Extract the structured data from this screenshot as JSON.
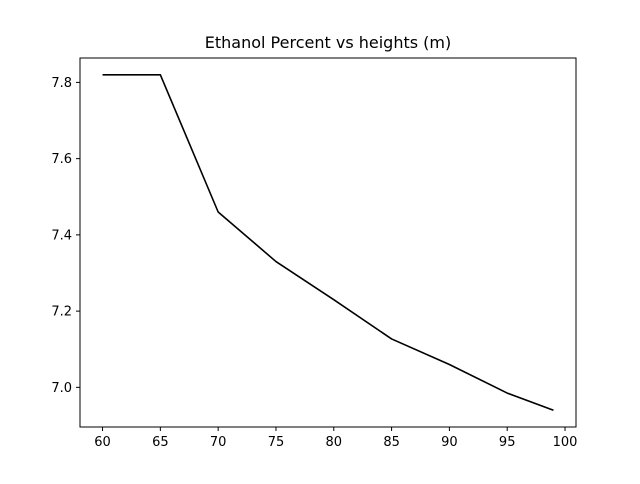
{
  "chart_data": {
    "type": "line",
    "title": "Ethanol Percent vs heights (m)",
    "xlabel": "",
    "ylabel": "",
    "xlim": [
      58.05,
      100.95
    ],
    "ylim": [
      6.896,
      7.864
    ],
    "grid": false,
    "legend": "none",
    "line_color": "#000000",
    "x_ticks": [
      60,
      65,
      70,
      75,
      80,
      85,
      90,
      95,
      100
    ],
    "x_tick_labels": [
      "60",
      "65",
      "70",
      "75",
      "80",
      "85",
      "90",
      "95",
      "100"
    ],
    "y_ticks": [
      7.0,
      7.2,
      7.4,
      7.6,
      7.8
    ],
    "y_tick_labels": [
      "7.0",
      "7.2",
      "7.4",
      "7.6",
      "7.8"
    ],
    "series": [
      {
        "x": [
          60,
          65,
          70,
          75,
          80,
          85,
          90,
          95,
          99
        ],
        "y": [
          7.82,
          7.82,
          7.46,
          7.33,
          7.23,
          7.127,
          7.06,
          6.985,
          6.94
        ]
      }
    ]
  }
}
